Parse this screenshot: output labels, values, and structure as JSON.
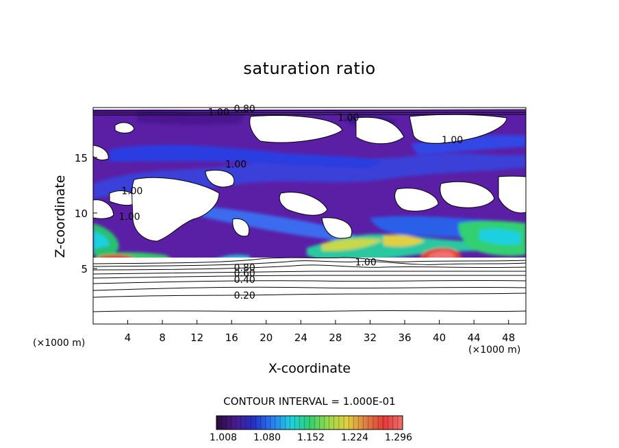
{
  "chart_data": {
    "type": "heatmap",
    "title": "saturation ratio",
    "xlabel": "X-coordinate",
    "ylabel": "Z-coordinate",
    "x_unit_label": "(×1000 m)",
    "x_ticks": [
      4,
      8,
      12,
      16,
      20,
      24,
      28,
      32,
      36,
      40,
      44,
      48
    ],
    "y_ticks": [
      5,
      10,
      15
    ],
    "xlim": [
      0,
      50
    ],
    "ylim": [
      0,
      19.5
    ],
    "contour_interval_label": "CONTOUR INTERVAL = 1.000E-01",
    "contour_labels": [
      {
        "text": "0.20",
        "x": 17.5,
        "y": 2.6
      },
      {
        "text": "0.40",
        "x": 17.5,
        "y": 4.0
      },
      {
        "text": "0.60",
        "x": 17.5,
        "y": 4.6
      },
      {
        "text": "0.80",
        "x": 17.5,
        "y": 5.1
      },
      {
        "text": "1.00",
        "x": 31.5,
        "y": 5.6
      },
      {
        "text": "1.00",
        "x": 4.5,
        "y": 12.0
      },
      {
        "text": "1.00",
        "x": 14.5,
        "y": 19.1
      },
      {
        "text": "0.80",
        "x": 17.5,
        "y": 19.4
      },
      {
        "text": "1.00",
        "x": 29.5,
        "y": 18.6
      },
      {
        "text": "1.00",
        "x": 41.5,
        "y": 16.6
      },
      {
        "text": "1.00",
        "x": 16.5,
        "y": 14.4
      },
      {
        "text": "1.00",
        "x": 4.2,
        "y": 9.7
      }
    ],
    "colorbar": {
      "ticks": [
        "1.008",
        "1.080",
        "1.152",
        "1.224",
        "1.296"
      ],
      "colors": [
        "#2a0a3c",
        "#4a1a8a",
        "#2430c8",
        "#2a7cf0",
        "#1fd0e0",
        "#30d070",
        "#9ad84a",
        "#e0d040",
        "#e08040",
        "#e23a38",
        "#f07070"
      ]
    }
  },
  "cint_text": "CONTOUR INTERVAL = 1.000E-01"
}
